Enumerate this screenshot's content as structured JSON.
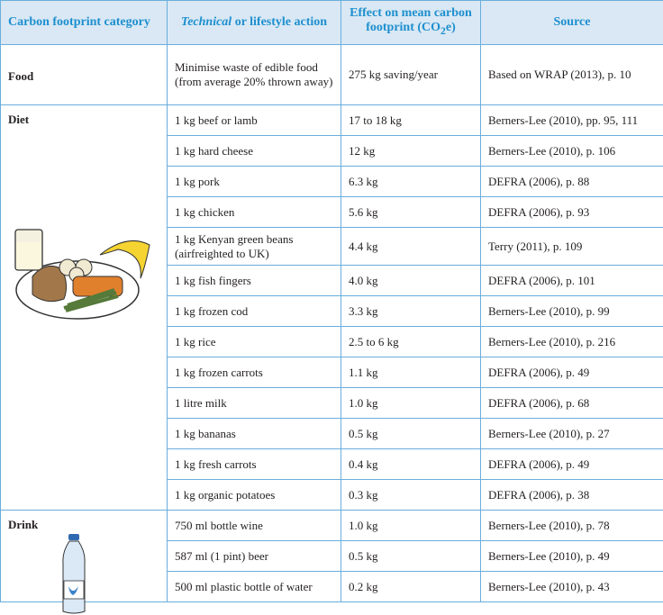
{
  "headers": {
    "category": "Carbon footprint category",
    "action_italic": "Technical",
    "action_rest": " or lifestyle action",
    "effect_pre": "Effect on mean carbon footprint (CO",
    "effect_sub": "2",
    "effect_post": "e)",
    "source": "Source"
  },
  "food": {
    "category": "Food",
    "action": "Minimise waste of edible food (from average 20% thrown away)",
    "effect": "275 kg saving/year",
    "source": "Based on WRAP (2013), p. 10"
  },
  "diet": {
    "category": "Diet",
    "icon": "meal-plate-illustration",
    "rows": [
      {
        "action": "1 kg beef or lamb",
        "effect": "17 to 18 kg",
        "source": "Berners-Lee (2010), pp. 95, 111"
      },
      {
        "action": "1 kg hard cheese",
        "effect": "12 kg",
        "source": "Berners-Lee (2010), p. 106"
      },
      {
        "action": "1 kg pork",
        "effect": "6.3 kg",
        "source": "DEFRA (2006), p. 88"
      },
      {
        "action": "1 kg chicken",
        "effect": "5.6 kg",
        "source": "DEFRA (2006), p. 93"
      },
      {
        "action": "1 kg Kenyan green beans (airfreighted to UK)",
        "effect": "4.4 kg",
        "source": "Terry (2011), p. 109"
      },
      {
        "action": "1 kg fish fingers",
        "effect": "4.0 kg",
        "source": "DEFRA (2006), p. 101"
      },
      {
        "action": "1 kg frozen cod",
        "effect": "3.3 kg",
        "source": "Berners-Lee (2010), p. 99"
      },
      {
        "action": "1 kg rice",
        "effect": "2.5 to 6 kg",
        "source": "Berners-Lee (2010), p. 216"
      },
      {
        "action": "1 kg frozen carrots",
        "effect": "1.1 kg",
        "source": "DEFRA (2006), p. 49"
      },
      {
        "action": "1 litre milk",
        "effect": "1.0 kg",
        "source": "DEFRA (2006), p. 68"
      },
      {
        "action": "1 kg bananas",
        "effect": "0.5 kg",
        "source": "Berners-Lee (2010), p. 27"
      },
      {
        "action": "1 kg fresh carrots",
        "effect": "0.4 kg",
        "source": "DEFRA (2006), p. 49"
      },
      {
        "action": "1 kg organic potatoes",
        "effect": "0.3 kg",
        "source": "DEFRA (2006), p. 38"
      }
    ]
  },
  "drink": {
    "category": "Drink",
    "icon": "water-bottle-illustration",
    "rows": [
      {
        "action": "750 ml bottle wine",
        "effect": "1.0 kg",
        "source": "Berners-Lee (2010), p. 78"
      },
      {
        "action": "587 ml (1 pint) beer",
        "effect": "0.5 kg",
        "source": "Berners-Lee (2010), p. 49"
      },
      {
        "action": "500 ml plastic bottle of water",
        "effect": "0.2 kg",
        "source": "Berners-Lee (2010), p. 43"
      }
    ]
  }
}
